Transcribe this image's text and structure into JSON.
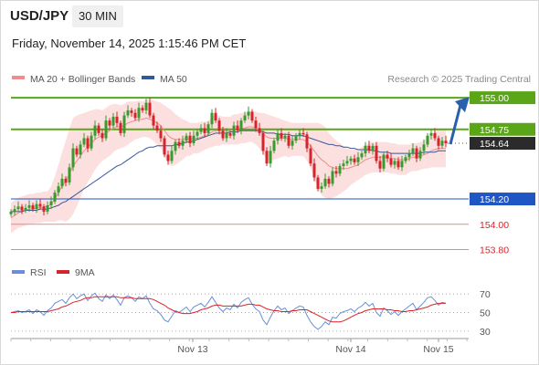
{
  "header": {
    "symbol": "USD/JPY",
    "timeframe": "30 MIN",
    "datetime": "Friday, November 14, 2025 1:15:46 PM CET"
  },
  "legend": {
    "ma20": "MA 20 + Bollinger Bands",
    "ma50": "MA 50",
    "source": "Research © 2025 Trading Central"
  },
  "colors": {
    "up": "#3a9a2e",
    "down": "#d8232a",
    "band_fill": "#fbd3d3",
    "ma20": "#f08c8c",
    "ma50": "#35589a",
    "resistance": "#5aa518",
    "current": "#2b2b2b",
    "pivot": "#1f56c4",
    "support": "#e58a8a",
    "arrow": "#2a5fae",
    "rsi": "#6a8fd8",
    "rsi_ma": "#d8232a"
  },
  "chart_data": [
    {
      "type": "candlestick",
      "symbol": "USD/JPY",
      "interval": "30 MIN",
      "x_ticks": [
        "Nov 13",
        "Nov 14",
        "Nov 15"
      ],
      "ylim": [
        153.71,
        155.08
      ],
      "grid": false,
      "legend_position": "top-left",
      "levels": [
        {
          "value": 155.0,
          "label": "155.00",
          "kind": "resistance"
        },
        {
          "value": 154.75,
          "label": "154.75",
          "kind": "resistance"
        },
        {
          "value": 154.64,
          "label": "154.64",
          "kind": "current"
        },
        {
          "value": 154.2,
          "label": "154.20",
          "kind": "pivot"
        },
        {
          "value": 154.0,
          "label": "154.00",
          "kind": "support"
        },
        {
          "value": 153.8,
          "label": "153.80",
          "kind": "support"
        }
      ],
      "close": [
        154.1,
        154.12,
        154.14,
        154.11,
        154.13,
        154.15,
        154.12,
        154.16,
        154.14,
        154.1,
        154.15,
        154.18,
        154.25,
        154.3,
        154.36,
        154.33,
        154.45,
        154.6,
        154.55,
        154.63,
        154.68,
        154.6,
        154.7,
        154.78,
        154.72,
        154.68,
        154.82,
        154.78,
        154.85,
        154.8,
        154.72,
        154.86,
        154.9,
        154.88,
        154.84,
        154.92,
        154.9,
        154.96,
        154.86,
        154.78,
        154.74,
        154.68,
        154.55,
        154.5,
        154.58,
        154.65,
        154.62,
        154.66,
        154.7,
        154.64,
        154.7,
        154.73,
        154.76,
        154.72,
        154.79,
        154.88,
        154.82,
        154.74,
        154.68,
        154.72,
        154.7,
        154.78,
        154.74,
        154.82,
        154.86,
        154.89,
        154.82,
        154.76,
        154.72,
        154.58,
        154.48,
        154.58,
        154.66,
        154.72,
        154.68,
        154.7,
        154.62,
        154.66,
        154.7,
        154.72,
        154.71,
        154.6,
        154.48,
        154.37,
        154.28,
        154.3,
        154.36,
        154.32,
        154.42,
        154.4,
        154.46,
        154.48,
        154.5,
        154.52,
        154.49,
        154.53,
        154.56,
        154.62,
        154.58,
        154.62,
        154.5,
        154.44,
        154.55,
        154.52,
        154.47,
        154.5,
        154.45,
        154.5,
        154.53,
        154.56,
        154.6,
        154.52,
        154.58,
        154.63,
        154.7,
        154.72,
        154.68,
        154.62,
        154.66,
        154.64
      ],
      "ma20": [
        154.05,
        154.07,
        154.09,
        154.1,
        154.11,
        154.12,
        154.12,
        154.13,
        154.13,
        154.14,
        154.14,
        154.16,
        154.2,
        154.25,
        154.3,
        154.34,
        154.4,
        154.46,
        154.5,
        154.54,
        154.58,
        154.61,
        154.64,
        154.67,
        154.69,
        154.7,
        154.72,
        154.74,
        154.76,
        154.77,
        154.77,
        154.78,
        154.8,
        154.81,
        154.82,
        154.83,
        154.83,
        154.84,
        154.83,
        154.82,
        154.8,
        154.78,
        154.74,
        154.7,
        154.68,
        154.67,
        154.67,
        154.67,
        154.68,
        154.67,
        154.68,
        154.68,
        154.69,
        154.7,
        154.71,
        154.73,
        154.74,
        154.74,
        154.74,
        154.74,
        154.74,
        154.75,
        154.75,
        154.76,
        154.76,
        154.77,
        154.77,
        154.76,
        154.74,
        154.72,
        154.69,
        154.68,
        154.68,
        154.68,
        154.68,
        154.68,
        154.67,
        154.67,
        154.67,
        154.67,
        154.67,
        154.65,
        154.62,
        154.58,
        154.54,
        154.51,
        154.49,
        154.46,
        154.45,
        154.44,
        154.44,
        154.44,
        154.44,
        154.45,
        154.46,
        154.47,
        154.49,
        154.51,
        154.52,
        154.53,
        154.53,
        154.53,
        154.53,
        154.53,
        154.52,
        154.52,
        154.51,
        154.51,
        154.51,
        154.52,
        154.53,
        154.53,
        154.54,
        154.55,
        154.56,
        154.58,
        154.59,
        154.6,
        154.6,
        154.6
      ],
      "ma50": [
        154.1,
        154.1,
        154.1,
        154.1,
        154.11,
        154.11,
        154.11,
        154.11,
        154.12,
        154.12,
        154.12,
        154.13,
        154.14,
        154.15,
        154.17,
        154.18,
        154.2,
        154.22,
        154.24,
        154.26,
        154.28,
        154.3,
        154.32,
        154.34,
        154.36,
        154.38,
        154.4,
        154.42,
        154.44,
        154.46,
        154.47,
        154.49,
        154.51,
        154.53,
        154.55,
        154.57,
        154.58,
        154.6,
        154.61,
        154.61,
        154.62,
        154.62,
        154.62,
        154.62,
        154.62,
        154.63,
        154.63,
        154.64,
        154.65,
        154.65,
        154.66,
        154.67,
        154.68,
        154.69,
        154.7,
        154.71,
        154.72,
        154.72,
        154.72,
        154.72,
        154.73,
        154.73,
        154.73,
        154.74,
        154.74,
        154.74,
        154.74,
        154.74,
        154.74,
        154.73,
        154.72,
        154.72,
        154.72,
        154.71,
        154.71,
        154.71,
        154.71,
        154.7,
        154.7,
        154.7,
        154.7,
        154.69,
        154.68,
        154.67,
        154.66,
        154.65,
        154.64,
        154.63,
        154.63,
        154.62,
        154.62,
        154.61,
        154.61,
        154.6,
        154.6,
        154.59,
        154.59,
        154.59,
        154.59,
        154.58,
        154.58,
        154.57,
        154.57,
        154.57,
        154.56,
        154.56,
        154.56,
        154.56,
        154.56,
        154.56,
        154.56,
        154.56,
        154.56,
        154.57,
        154.57,
        154.57,
        154.57,
        154.58,
        154.58,
        154.58
      ],
      "band_width": [
        0.12,
        0.12,
        0.12,
        0.12,
        0.12,
        0.12,
        0.12,
        0.12,
        0.12,
        0.12,
        0.12,
        0.14,
        0.18,
        0.22,
        0.27,
        0.32,
        0.36,
        0.38,
        0.36,
        0.33,
        0.3,
        0.28,
        0.26,
        0.24,
        0.22,
        0.2,
        0.2,
        0.2,
        0.19,
        0.18,
        0.17,
        0.17,
        0.17,
        0.16,
        0.15,
        0.15,
        0.14,
        0.15,
        0.15,
        0.16,
        0.17,
        0.18,
        0.2,
        0.22,
        0.22,
        0.2,
        0.18,
        0.16,
        0.14,
        0.13,
        0.12,
        0.12,
        0.12,
        0.11,
        0.11,
        0.12,
        0.12,
        0.12,
        0.11,
        0.11,
        0.11,
        0.12,
        0.12,
        0.12,
        0.12,
        0.12,
        0.12,
        0.13,
        0.14,
        0.16,
        0.18,
        0.18,
        0.17,
        0.16,
        0.15,
        0.14,
        0.14,
        0.13,
        0.13,
        0.13,
        0.13,
        0.15,
        0.18,
        0.22,
        0.26,
        0.28,
        0.28,
        0.26,
        0.24,
        0.22,
        0.2,
        0.18,
        0.16,
        0.14,
        0.13,
        0.12,
        0.12,
        0.12,
        0.12,
        0.12,
        0.12,
        0.12,
        0.12,
        0.12,
        0.12,
        0.12,
        0.12,
        0.12,
        0.12,
        0.11,
        0.11,
        0.11,
        0.11,
        0.11,
        0.12,
        0.13,
        0.14,
        0.15,
        0.15,
        0.15
      ]
    },
    {
      "type": "line",
      "series": [
        {
          "name": "RSI",
          "values": [
            50,
            51,
            52,
            50,
            51,
            53,
            49,
            53,
            51,
            47,
            52,
            55,
            60,
            62,
            64,
            60,
            66,
            70,
            65,
            68,
            70,
            63,
            68,
            71,
            65,
            62,
            69,
            65,
            69,
            64,
            58,
            66,
            68,
            66,
            62,
            67,
            65,
            68,
            60,
            54,
            52,
            48,
            42,
            40,
            46,
            52,
            50,
            53,
            56,
            51,
            56,
            58,
            60,
            56,
            61,
            67,
            61,
            55,
            51,
            55,
            53,
            59,
            55,
            61,
            64,
            66,
            59,
            54,
            51,
            42,
            37,
            45,
            52,
            57,
            53,
            55,
            49,
            52,
            55,
            57,
            56,
            47,
            40,
            35,
            32,
            35,
            40,
            37,
            45,
            44,
            49,
            51,
            52,
            54,
            51,
            55,
            57,
            61,
            57,
            60,
            50,
            46,
            55,
            52,
            48,
            51,
            47,
            51,
            54,
            57,
            60,
            53,
            57,
            61,
            66,
            67,
            63,
            58,
            61,
            60
          ]
        },
        {
          "name": "9MA",
          "values": [
            50,
            50,
            51,
            51,
            51,
            51,
            51,
            51,
            51,
            51,
            51,
            52,
            53,
            54,
            56,
            57,
            59,
            61,
            62,
            63,
            65,
            66,
            66,
            67,
            67,
            67,
            67,
            67,
            67,
            67,
            66,
            66,
            66,
            66,
            65,
            65,
            65,
            65,
            65,
            64,
            62,
            60,
            58,
            55,
            53,
            51,
            50,
            49,
            49,
            49,
            50,
            51,
            53,
            54,
            55,
            57,
            58,
            58,
            57,
            57,
            57,
            57,
            57,
            57,
            58,
            59,
            59,
            58,
            58,
            56,
            54,
            53,
            52,
            52,
            51,
            51,
            51,
            52,
            52,
            53,
            53,
            53,
            51,
            49,
            47,
            45,
            43,
            41,
            40,
            40,
            40,
            41,
            43,
            45,
            47,
            49,
            50,
            52,
            53,
            54,
            54,
            54,
            54,
            53,
            53,
            52,
            52,
            51,
            51,
            52,
            52,
            53,
            54,
            55,
            56,
            58,
            59,
            60,
            60,
            60
          ]
        }
      ],
      "ylim": [
        25,
        80
      ],
      "y_ticks": [
        {
          "value": 70,
          "label": "70"
        },
        {
          "value": 50,
          "label": "50"
        },
        {
          "value": 30,
          "label": "30"
        }
      ],
      "legend_position": "top-left",
      "grid": true
    }
  ]
}
